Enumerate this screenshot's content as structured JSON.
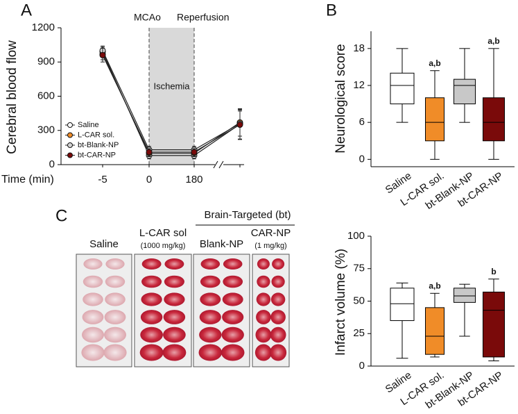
{
  "chart_data": [
    {
      "type": "line",
      "panel": "A",
      "y_label": "Cerebral blood flow",
      "x_label": "Time (min)",
      "categories": [
        "-5",
        "0",
        "180",
        null
      ],
      "annotations": [
        "MCAo",
        "Reperfusion",
        "Ischemia"
      ],
      "ylim": [
        0,
        1200
      ],
      "yticks": [
        0,
        300,
        600,
        900,
        1200
      ],
      "series": [
        {
          "name": "Saline",
          "color": "#ffffff",
          "values": [
            990,
            80,
            80,
            355
          ],
          "errors": [
            40,
            30,
            30,
            130
          ]
        },
        {
          "name": "L-CAR sol.",
          "color": "#f08c28",
          "values": [
            970,
            100,
            100,
            370
          ],
          "errors": [
            50,
            30,
            30,
            120
          ]
        },
        {
          "name": "bt-Blank-NP",
          "color": "#d4d4d4",
          "values": [
            1000,
            130,
            130,
            360
          ],
          "errors": [
            40,
            30,
            30,
            110
          ]
        },
        {
          "name": "bt-CAR-NP",
          "color": "#7a0a0a",
          "values": [
            960,
            110,
            110,
            350
          ],
          "errors": [
            60,
            30,
            30,
            130
          ]
        }
      ]
    },
    {
      "type": "box",
      "panel": "B",
      "y_label": "Neurological score",
      "categories": [
        "Saline",
        "L-CAR sol.",
        "bt-Blank-NP",
        "bt-CAR-NP"
      ],
      "ylim": [
        -1.2,
        20.8
      ],
      "yticks": [
        0,
        6,
        12,
        18
      ],
      "boxes": [
        {
          "min": 6,
          "q1": 9,
          "median": 12,
          "q3": 14,
          "max": 18,
          "color": "#ffffff"
        },
        {
          "min": 0,
          "q1": 3,
          "median": 6,
          "q3": 10,
          "max": 14.4,
          "color": "#f08c28"
        },
        {
          "min": 6,
          "q1": 9,
          "median": 12,
          "q3": 13,
          "max": 18,
          "color": "#c8c8c8"
        },
        {
          "min": 0,
          "q1": 3,
          "median": 6,
          "q3": 10,
          "max": 18,
          "color": "#7a0a0a"
        }
      ],
      "box_labels": [
        null,
        "a,b",
        null,
        "a,b"
      ]
    },
    {
      "type": "box",
      "y_label": "Infarct volume (%)",
      "categories": [
        "Saline",
        "L-CAR sol.",
        "bt-Blank-NP",
        "bt-CAR-NP"
      ],
      "ylim": [
        0,
        100
      ],
      "yticks": [
        0,
        25,
        50,
        75,
        100
      ],
      "boxes": [
        {
          "min": 6,
          "q1": 35,
          "median": 48,
          "q3": 60,
          "max": 64,
          "color": "#ffffff"
        },
        {
          "min": 7,
          "q1": 9,
          "median": 23,
          "q3": 45,
          "max": 56,
          "color": "#f08c28"
        },
        {
          "min": 23,
          "q1": 49,
          "median": 54,
          "q3": 60,
          "max": 63,
          "color": "#c8c8c8"
        },
        {
          "min": 4,
          "q1": 7,
          "median": 43,
          "q3": 57,
          "max": 67,
          "color": "#7a0a0a"
        }
      ],
      "box_labels": [
        null,
        "a,b",
        null,
        "b"
      ]
    }
  ],
  "image_panel": {
    "panel": "C",
    "group_label": "Brain-Targeted (bt)",
    "columns": [
      {
        "label": "Saline"
      },
      {
        "label": "L-CAR sol",
        "dose": "(1000 mg/kg)"
      },
      {
        "label": "Blank-NP"
      },
      {
        "label": "CAR-NP",
        "dose": "(1 mg/kg)"
      }
    ]
  }
}
